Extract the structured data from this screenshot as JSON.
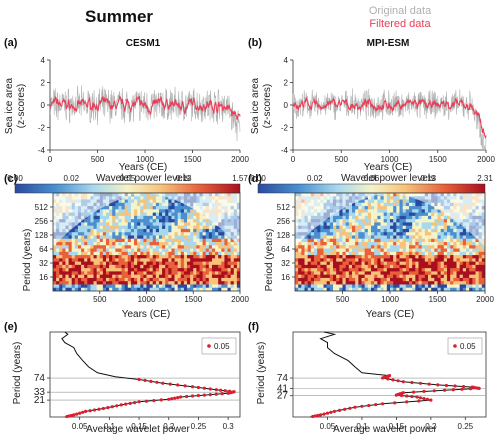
{
  "title": "Summer",
  "legend_top": {
    "original": "Original data",
    "filtered": "Filtered data",
    "original_color": "#b0b0b0",
    "filtered_color": "#e8405a"
  },
  "chart_data": [
    {
      "panel": "(a)",
      "model": "CESM1",
      "type": "line",
      "xlabel": "Years (CE)",
      "ylabel_lines": [
        "Sea ice area",
        "(z-scores)"
      ],
      "xlim": [
        0,
        2000
      ],
      "ylim": [
        -4,
        4
      ],
      "xticks": [
        0,
        500,
        1000,
        1500,
        2000
      ],
      "yticks": [
        -4,
        -2,
        0,
        2,
        4
      ],
      "series": [
        {
          "name": "Original data",
          "color": "#b0b0b0",
          "amp": 1.2,
          "end": -1.8,
          "end_original": -2.2
        },
        {
          "name": "Filtered data",
          "color": "#e8405a",
          "amp": 0.35,
          "end": -1.5
        }
      ]
    },
    {
      "panel": "(b)",
      "model": "MPI-ESM",
      "type": "line",
      "xlabel": "Years (CE)",
      "ylabel_lines": [
        "Sea ice area",
        "(z-scores)"
      ],
      "xlim": [
        0,
        2000
      ],
      "ylim": [
        -4,
        4
      ],
      "xticks": [
        0,
        500,
        1000,
        1500,
        2000
      ],
      "yticks": [
        -4,
        -2,
        0,
        2,
        4
      ],
      "series": [
        {
          "name": "Original data",
          "color": "#b0b0b0",
          "amp": 1.0,
          "end": -3.0,
          "end_original": -3.7
        },
        {
          "name": "Filtered data",
          "color": "#e8405a",
          "amp": 0.3,
          "end": -2.6
        }
      ]
    },
    {
      "panel": "(c)",
      "type": "heatmap",
      "colorbar_title": "Wavelet power levels",
      "colorbar_ticks": [
        "0.00",
        "0.02",
        "0.05",
        "0.13",
        "1.57"
      ],
      "xlabel": "Years (CE)",
      "ylabel": "Period (years)",
      "xlim": [
        0,
        2000
      ],
      "xticks": [
        500,
        1000,
        1500,
        2000
      ],
      "yticks": [
        16,
        32,
        64,
        128,
        256,
        512
      ],
      "ylim": [
        8,
        1024
      ]
    },
    {
      "panel": "(d)",
      "type": "heatmap",
      "colorbar_title": "Wavelet power levels",
      "colorbar_ticks": [
        "0.00",
        "0.02",
        "0.06",
        "0.13",
        "2.31"
      ],
      "xlabel": "Years (CE)",
      "ylabel": "Period (years)",
      "xlim": [
        0,
        2000
      ],
      "xticks": [
        500,
        1000,
        1500,
        2000
      ],
      "yticks": [
        16,
        32,
        64,
        128,
        256,
        512
      ],
      "ylim": [
        8,
        1024
      ]
    },
    {
      "panel": "(e)",
      "type": "line",
      "xlabel": "Average wavelet power",
      "ylabel": "Period (years)",
      "xlim": [
        0,
        0.32
      ],
      "xticks": [
        0.05,
        0.1,
        0.15,
        0.2,
        0.25,
        0.3
      ],
      "xtick_labels": [
        "0.05",
        "0.1",
        "0.15",
        "0.2",
        "0.25",
        "0.3"
      ],
      "ylim": [
        8,
        1024
      ],
      "yticks": [
        21,
        33,
        74
      ],
      "hlines": [
        21,
        33,
        74
      ],
      "legend": "0.05",
      "series": [
        {
          "period": [
            1024,
            900,
            700,
            560,
            420,
            300,
            200,
            140,
            100,
            80,
            68,
            55,
            45,
            38,
            34,
            31,
            28,
            25,
            22,
            19,
            16,
            13,
            11,
            9,
            8
          ],
          "power": [
            0.025,
            0.03,
            0.02,
            0.025,
            0.04,
            0.045,
            0.055,
            0.065,
            0.08,
            0.11,
            0.15,
            0.19,
            0.24,
            0.28,
            0.31,
            0.3,
            0.26,
            0.22,
            0.2,
            0.15,
            0.12,
            0.09,
            0.06,
            0.04,
            0.025
          ],
          "significant_from_index": 10
        }
      ]
    },
    {
      "panel": "(f)",
      "type": "line",
      "xlabel": "Average wavelet power",
      "ylabel": "Period (years)",
      "xlim": [
        0,
        0.28
      ],
      "xticks": [
        0.05,
        0.1,
        0.15,
        0.2,
        0.25
      ],
      "xtick_labels": [
        "0.05",
        "0.1",
        "0.15",
        "0.2",
        "0.25"
      ],
      "ylim": [
        8,
        1024
      ],
      "yticks": [
        27,
        41,
        74
      ],
      "hlines": [
        27,
        41,
        74
      ],
      "legend": "0.05",
      "series": [
        {
          "period": [
            1024,
            900,
            700,
            560,
            420,
            300,
            200,
            140,
            100,
            85,
            74,
            60,
            50,
            44,
            41,
            37,
            32,
            28,
            25,
            21,
            17,
            14,
            11,
            9,
            8
          ],
          "power": [
            0.045,
            0.06,
            0.04,
            0.05,
            0.05,
            0.06,
            0.08,
            0.09,
            0.1,
            0.14,
            0.13,
            0.16,
            0.21,
            0.26,
            0.27,
            0.22,
            0.16,
            0.15,
            0.18,
            0.2,
            0.13,
            0.09,
            0.06,
            0.04,
            0.025
          ],
          "significant_from_index": 9
        }
      ]
    }
  ]
}
